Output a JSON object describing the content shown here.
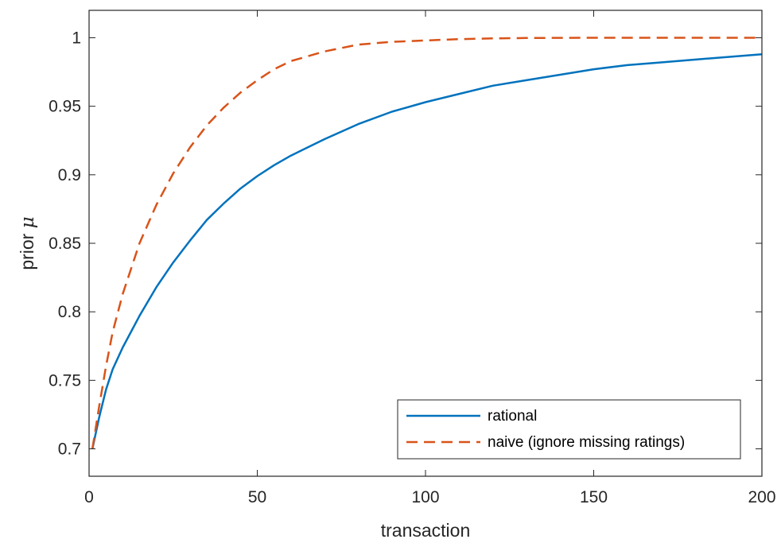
{
  "chart_data": {
    "type": "line",
    "title": "",
    "xlabel": "transaction",
    "ylabel_text": "prior ",
    "ylabel_symbol": "μ",
    "xlim": [
      0,
      200
    ],
    "ylim": [
      0.68,
      1.02
    ],
    "xticks": [
      0,
      50,
      100,
      150,
      200
    ],
    "yticks": [
      0.7,
      0.75,
      0.8,
      0.85,
      0.9,
      0.95,
      1
    ],
    "ytick_labels": [
      "0.7",
      "0.75",
      "0.8",
      "0.85",
      "0.9",
      "0.95",
      "1"
    ],
    "grid": false,
    "legend_position": "bottom-right",
    "series": [
      {
        "name": "rational",
        "color": "#0072bd",
        "dash": "solid",
        "x": [
          1,
          3,
          5,
          7,
          10,
          15,
          20,
          25,
          30,
          35,
          40,
          45,
          50,
          55,
          60,
          70,
          80,
          90,
          100,
          110,
          120,
          130,
          140,
          150,
          160,
          170,
          180,
          190,
          200
        ],
        "y": [
          0.7,
          0.723,
          0.743,
          0.758,
          0.774,
          0.797,
          0.818,
          0.836,
          0.852,
          0.867,
          0.879,
          0.89,
          0.899,
          0.907,
          0.914,
          0.926,
          0.937,
          0.946,
          0.953,
          0.959,
          0.965,
          0.969,
          0.973,
          0.977,
          0.98,
          0.982,
          0.984,
          0.986,
          0.988
        ]
      },
      {
        "name": "naive (ignore missing ratings)",
        "color": "#d95319",
        "dash": "dashed",
        "x": [
          1,
          3,
          5,
          7,
          10,
          15,
          20,
          25,
          30,
          35,
          40,
          45,
          50,
          55,
          60,
          70,
          80,
          90,
          100,
          110,
          120,
          130,
          140,
          150,
          160,
          170,
          180,
          190,
          200
        ],
        "y": [
          0.7,
          0.731,
          0.76,
          0.785,
          0.813,
          0.85,
          0.878,
          0.901,
          0.92,
          0.936,
          0.949,
          0.96,
          0.969,
          0.977,
          0.983,
          0.99,
          0.995,
          0.997,
          0.998,
          0.999,
          0.9995,
          0.9998,
          0.9999,
          1.0,
          1.0,
          1.0,
          1.0,
          1.0,
          1.0
        ]
      }
    ]
  }
}
